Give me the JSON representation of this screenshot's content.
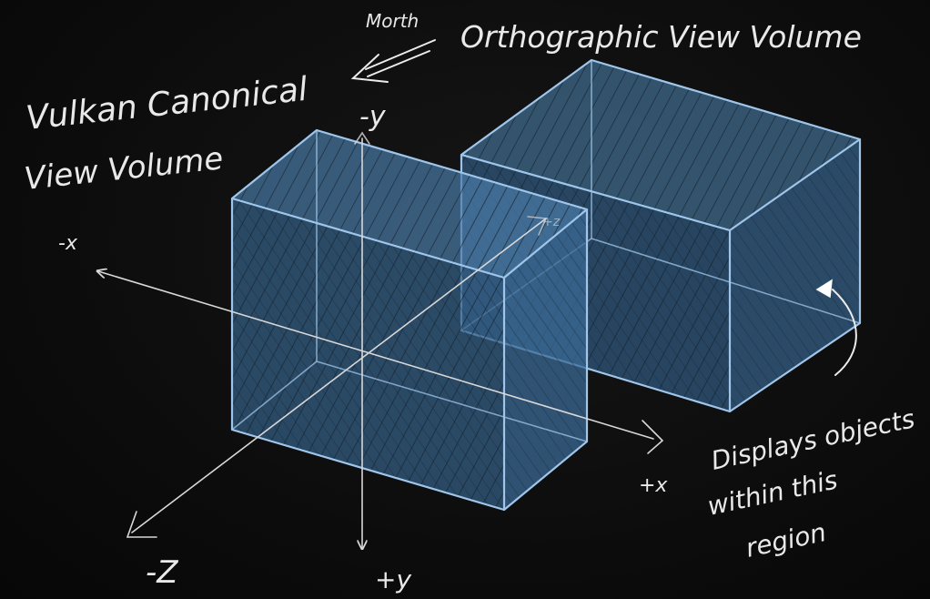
{
  "colors": {
    "background": "#0d0d0d",
    "volume_edge": "#9fc6ea",
    "volume_fill": "#4a7aa6",
    "chalk": "#e9e9e9"
  },
  "labels": {
    "canonical_title_line1": "Vulkan Canonical",
    "canonical_title_line2": "View Volume",
    "ortho_title": "Orthographic View Volume",
    "morth": "Morth",
    "axis_neg_y": "-y",
    "axis_pos_y": "+y",
    "axis_neg_x": "-x",
    "axis_pos_x": "+x",
    "axis_neg_z": "-Z",
    "axis_pos_z": "+z",
    "note_line1": "Displays objects",
    "note_line2": "within this",
    "note_line3": "region"
  }
}
